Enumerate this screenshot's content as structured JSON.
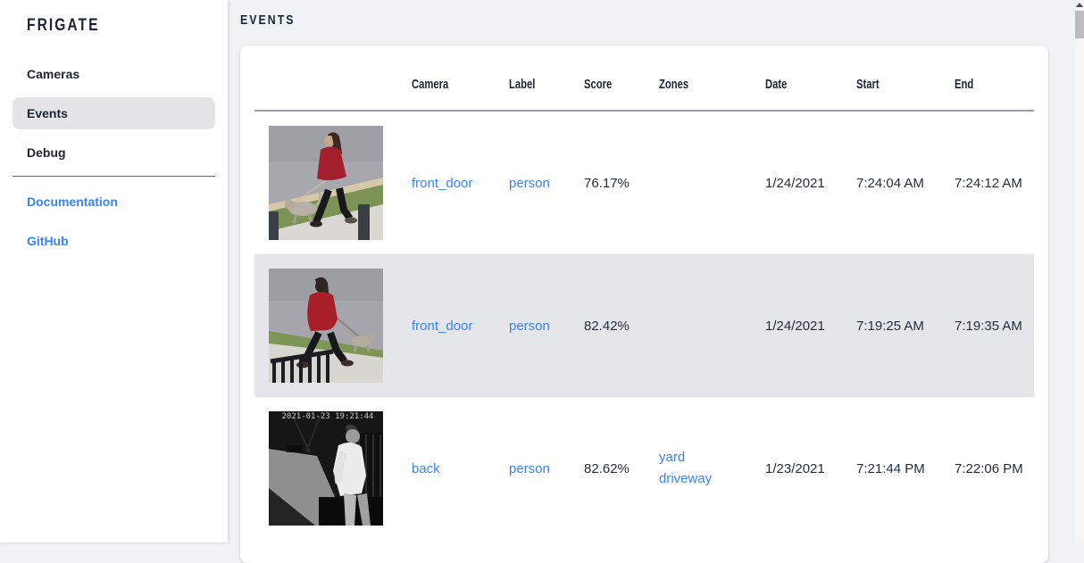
{
  "app": {
    "title": "FRIGATE"
  },
  "sidebar": {
    "items": [
      {
        "label": "Cameras",
        "active": false
      },
      {
        "label": "Events",
        "active": true
      },
      {
        "label": "Debug",
        "active": false
      }
    ],
    "links": [
      {
        "label": "Documentation"
      },
      {
        "label": "GitHub"
      }
    ]
  },
  "main": {
    "heading": "EVENTS"
  },
  "table": {
    "columns": [
      "Camera",
      "Label",
      "Score",
      "Zones",
      "Date",
      "Start",
      "End"
    ],
    "rows": [
      {
        "camera": "front_door",
        "label": "person",
        "score": "76.17%",
        "zones": [],
        "date": "1/24/2021",
        "start": "7:24:04 AM",
        "end": "7:24:12 AM",
        "thumb": "red-coat-dog",
        "thumb_alt": "person in red coat walking a dog on a sidewalk"
      },
      {
        "camera": "front_door",
        "label": "person",
        "score": "82.42%",
        "zones": [],
        "date": "1/24/2021",
        "start": "7:19:25 AM",
        "end": "7:19:35 AM",
        "thumb": "red-jacket-dog",
        "thumb_alt": "person in red jacket walking a dog on a sidewalk near a railing"
      },
      {
        "camera": "back",
        "label": "person",
        "score": "82.62%",
        "zones": [
          "yard",
          "driveway"
        ],
        "date": "1/23/2021",
        "start": "7:21:44 PM",
        "end": "7:22:06 PM",
        "thumb": "night-person",
        "thumb_alt": "night infrared image of person in white shirt beside a truck",
        "thumb_overlay_timestamp": "2021-01-23 19:21:44"
      }
    ]
  },
  "colors": {
    "link_blue": "#3b82f6",
    "text_dark": "#1b2433",
    "alt_row_bg": "#e5e6ea",
    "page_bg": "#f1f2f4"
  }
}
